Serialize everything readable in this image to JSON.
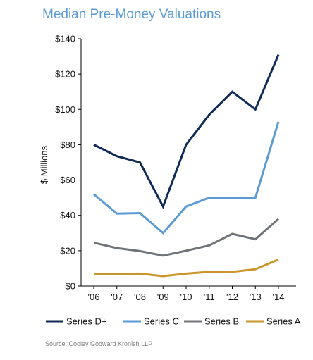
{
  "chart_data": {
    "type": "line",
    "title": "Median Pre-Money Valuations",
    "ylabel": "$ Millions",
    "xlabel": "",
    "categories": [
      "'06",
      "'07",
      "'08",
      "'09",
      "'10",
      "'11",
      "'12",
      "'13",
      "'14"
    ],
    "ylim": [
      0,
      140
    ],
    "yticks": [
      0,
      20,
      40,
      60,
      80,
      100,
      120,
      140
    ],
    "ytick_labels": [
      "$0",
      "$20",
      "$40",
      "$60",
      "$80",
      "$100",
      "$120",
      "$140"
    ],
    "grid": false,
    "legend_position": "bottom",
    "series": [
      {
        "name": "Series D+",
        "color": "#0f2a56",
        "values": [
          80,
          73.5,
          70,
          45,
          80,
          97,
          110,
          100,
          131
        ]
      },
      {
        "name": "Series C",
        "color": "#5b9bd5",
        "values": [
          52,
          41,
          41.3,
          30,
          45,
          50,
          50,
          50,
          93
        ]
      },
      {
        "name": "Series B",
        "color": "#707479",
        "values": [
          24.5,
          21.5,
          19.8,
          17.2,
          20,
          23,
          29.5,
          26.5,
          38
        ]
      },
      {
        "name": "Series A",
        "color": "#c9962b",
        "values": [
          6.8,
          6.9,
          7,
          5.6,
          7,
          8,
          8,
          9.5,
          15
        ]
      }
    ],
    "source": "Source:  Cooley Godward Kronish LLP"
  }
}
